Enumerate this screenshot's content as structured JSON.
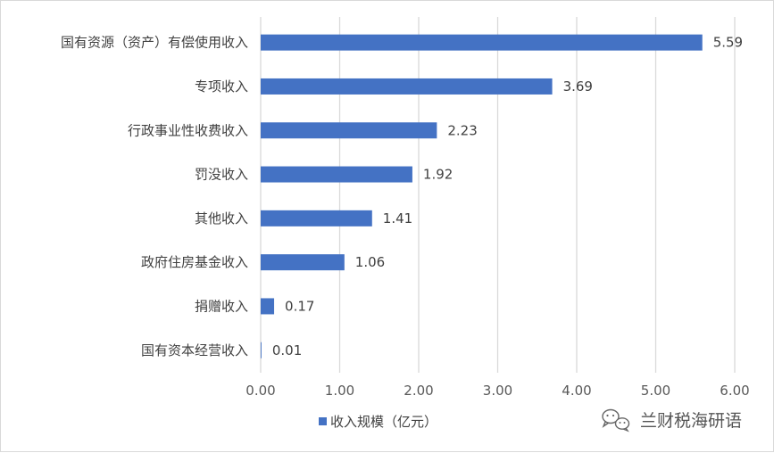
{
  "chart_data": {
    "type": "bar",
    "orientation": "horizontal",
    "categories": [
      "国有资源（资产）有偿使用收入",
      "专项收入",
      "行政事业性收费收入",
      "罚没收入",
      "其他收入",
      "政府住房基金收入",
      "捐赠收入",
      "国有资本经营收入"
    ],
    "series": [
      {
        "name": "收入规模（亿元）",
        "values": [
          5.59,
          3.69,
          2.23,
          1.92,
          1.41,
          1.06,
          0.17,
          0.01
        ],
        "value_labels": [
          "5.59",
          "3.69",
          "2.23",
          "1.92",
          "1.41",
          "1.06",
          "0.17",
          "0.01"
        ],
        "color": "#4472c4"
      }
    ],
    "xlim": [
      0,
      6
    ],
    "x_ticks": [
      "0.00",
      "1.00",
      "2.00",
      "3.00",
      "4.00",
      "5.00",
      "6.00"
    ],
    "grid": "vertical",
    "legend_position": "bottom"
  },
  "watermark": {
    "text": "兰财税海研语",
    "icon": "wechat-icon"
  },
  "colors": {
    "bar": "#4472c4",
    "grid": "#d9d9d9",
    "text": "#404040"
  }
}
